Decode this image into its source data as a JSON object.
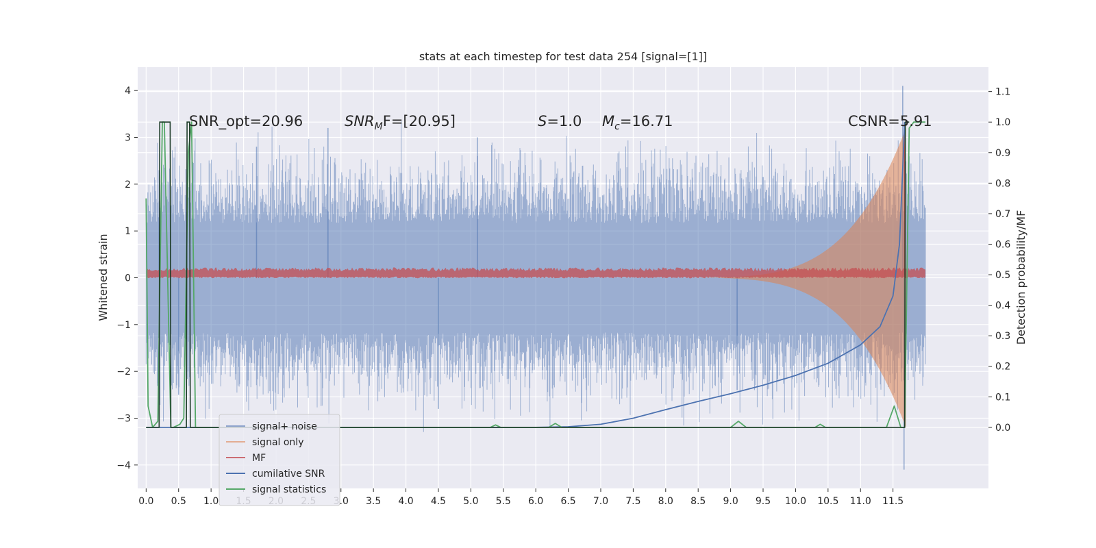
{
  "chart_data": {
    "type": "line",
    "title": "stats at each timestep for test data 254 [signal=[1]]",
    "ylabel_left": "Whitened strain",
    "ylabel_right": "Detection probability/MF",
    "xlim": [
      -0.13,
      12.97
    ],
    "ylim_left": [
      -4.5,
      4.5
    ],
    "ylim_right": [
      -0.2,
      1.18
    ],
    "xticks": [
      0.0,
      0.5,
      1.0,
      1.5,
      2.0,
      2.5,
      3.0,
      3.5,
      4.0,
      4.5,
      5.0,
      5.5,
      6.0,
      6.5,
      7.0,
      7.5,
      8.0,
      8.5,
      9.0,
      9.5,
      10.0,
      10.5,
      11.0,
      11.5
    ],
    "xtick_labels": [
      "0.0",
      "0.5",
      "1.0",
      "1.5",
      "2.0",
      "2.5",
      "3.0",
      "3.5",
      "4.0",
      "4.5",
      "5.0",
      "5.5",
      "6.0",
      "6.5",
      "7.0",
      "7.5",
      "8.0",
      "8.5",
      "9.0",
      "9.5",
      "10.0",
      "10.5",
      "11.0",
      "11.5"
    ],
    "yticks_left": [
      -4,
      -3,
      -2,
      -1,
      0,
      1,
      2,
      3,
      4
    ],
    "ytick_labels_left": [
      "−4",
      "−3",
      "−2",
      "−1",
      "0",
      "1",
      "2",
      "3",
      "4"
    ],
    "yticks_right": [
      0.0,
      0.1,
      0.2,
      0.3,
      0.4,
      0.5,
      0.6,
      0.7,
      0.8,
      0.9,
      1.0,
      1.1
    ],
    "ytick_labels_right": [
      "0.0",
      "0.1",
      "0.2",
      "0.3",
      "0.4",
      "0.5",
      "0.6",
      "0.7",
      "0.8",
      "0.9",
      "1.0",
      "1.1"
    ],
    "grid": true,
    "legend_position": "lower-left",
    "annotations": {
      "snr_opt": "SNR_opt=20.96",
      "snr_mf_main": "SNR",
      "snr_mf_sub": "M",
      "snr_mf_rest": "F=[20.95]",
      "s_var": "S",
      "s_rest": "=1.0",
      "mc_var": "M",
      "mc_sub": "c",
      "mc_rest": "=16.71",
      "csnr": "CSNR=5.91"
    },
    "series": [
      {
        "name": "signal+ noise",
        "axis": "left",
        "color": "#4c72b0",
        "style": "noise-band",
        "x_range": [
          0.0,
          12.0
        ],
        "typical_amplitude": 1.3,
        "peak_values": [
          [
            0.2,
            2.3
          ],
          [
            0.5,
            -2.5
          ],
          [
            1.7,
            2.8
          ],
          [
            2.8,
            3.2
          ],
          [
            4.5,
            -2.8
          ],
          [
            5.1,
            3.0
          ],
          [
            9.1,
            -2.4
          ],
          [
            11.65,
            4.1
          ],
          [
            11.67,
            -4.1
          ]
        ]
      },
      {
        "name": "signal only",
        "axis": "left",
        "color": "#dd8452",
        "style": "chirp",
        "x_range": [
          8.0,
          11.7
        ],
        "peak_amplitude": 3.2
      },
      {
        "name": "MF",
        "axis": "right",
        "color": "#c44e52",
        "style": "band",
        "x_range": [
          0.0,
          12.0
        ],
        "level": 0.5,
        "peak_value": 1.0
      },
      {
        "name": "cumilative SNR",
        "axis": "right",
        "color": "#4c72b0",
        "x": [
          0.0,
          6.0,
          6.5,
          7.0,
          7.5,
          8.0,
          8.5,
          9.0,
          9.5,
          10.0,
          10.5,
          11.0,
          11.3,
          11.5,
          11.6,
          11.65,
          11.68
        ],
        "y": [
          0.0,
          0.0,
          0.002,
          0.01,
          0.03,
          0.058,
          0.085,
          0.11,
          0.138,
          0.17,
          0.21,
          0.27,
          0.33,
          0.43,
          0.6,
          0.85,
          1.0
        ]
      },
      {
        "name": "signal statistics",
        "axis": "right",
        "color": "#55a868",
        "x": [
          0.0,
          0.03,
          0.1,
          0.18,
          0.25,
          0.28,
          0.38,
          0.42,
          0.52,
          0.58,
          0.65,
          0.7,
          0.76,
          0.85,
          5.3,
          5.38,
          5.46,
          6.2,
          6.3,
          6.4,
          9.0,
          9.12,
          9.24,
          10.3,
          10.38,
          10.46,
          11.4,
          11.52,
          11.62,
          11.68,
          11.75,
          11.82,
          11.9,
          12.0
        ],
        "y": [
          0.75,
          0.07,
          0.0,
          0.02,
          1.0,
          1.0,
          0.0,
          0.0,
          0.01,
          0.03,
          0.9,
          1.0,
          0.0,
          0.0,
          0.0,
          0.008,
          0.0,
          0.0,
          0.013,
          0.0,
          0.0,
          0.02,
          0.0,
          0.0,
          0.01,
          0.0,
          0.0,
          0.07,
          0.0,
          0.0,
          0.98,
          1.0,
          1.0,
          1.0
        ]
      },
      {
        "name": "",
        "axis": "right",
        "color": "#1f3d2a",
        "style": "step",
        "x": [
          0.0,
          0.2,
          0.21,
          0.37,
          0.38,
          0.62,
          0.63,
          0.67,
          0.68,
          11.68,
          11.69,
          11.75
        ],
        "y": [
          0.0,
          0.0,
          1.0,
          1.0,
          0.0,
          0.0,
          1.0,
          1.0,
          0.0,
          0.0,
          1.0,
          1.0
        ]
      }
    ]
  }
}
